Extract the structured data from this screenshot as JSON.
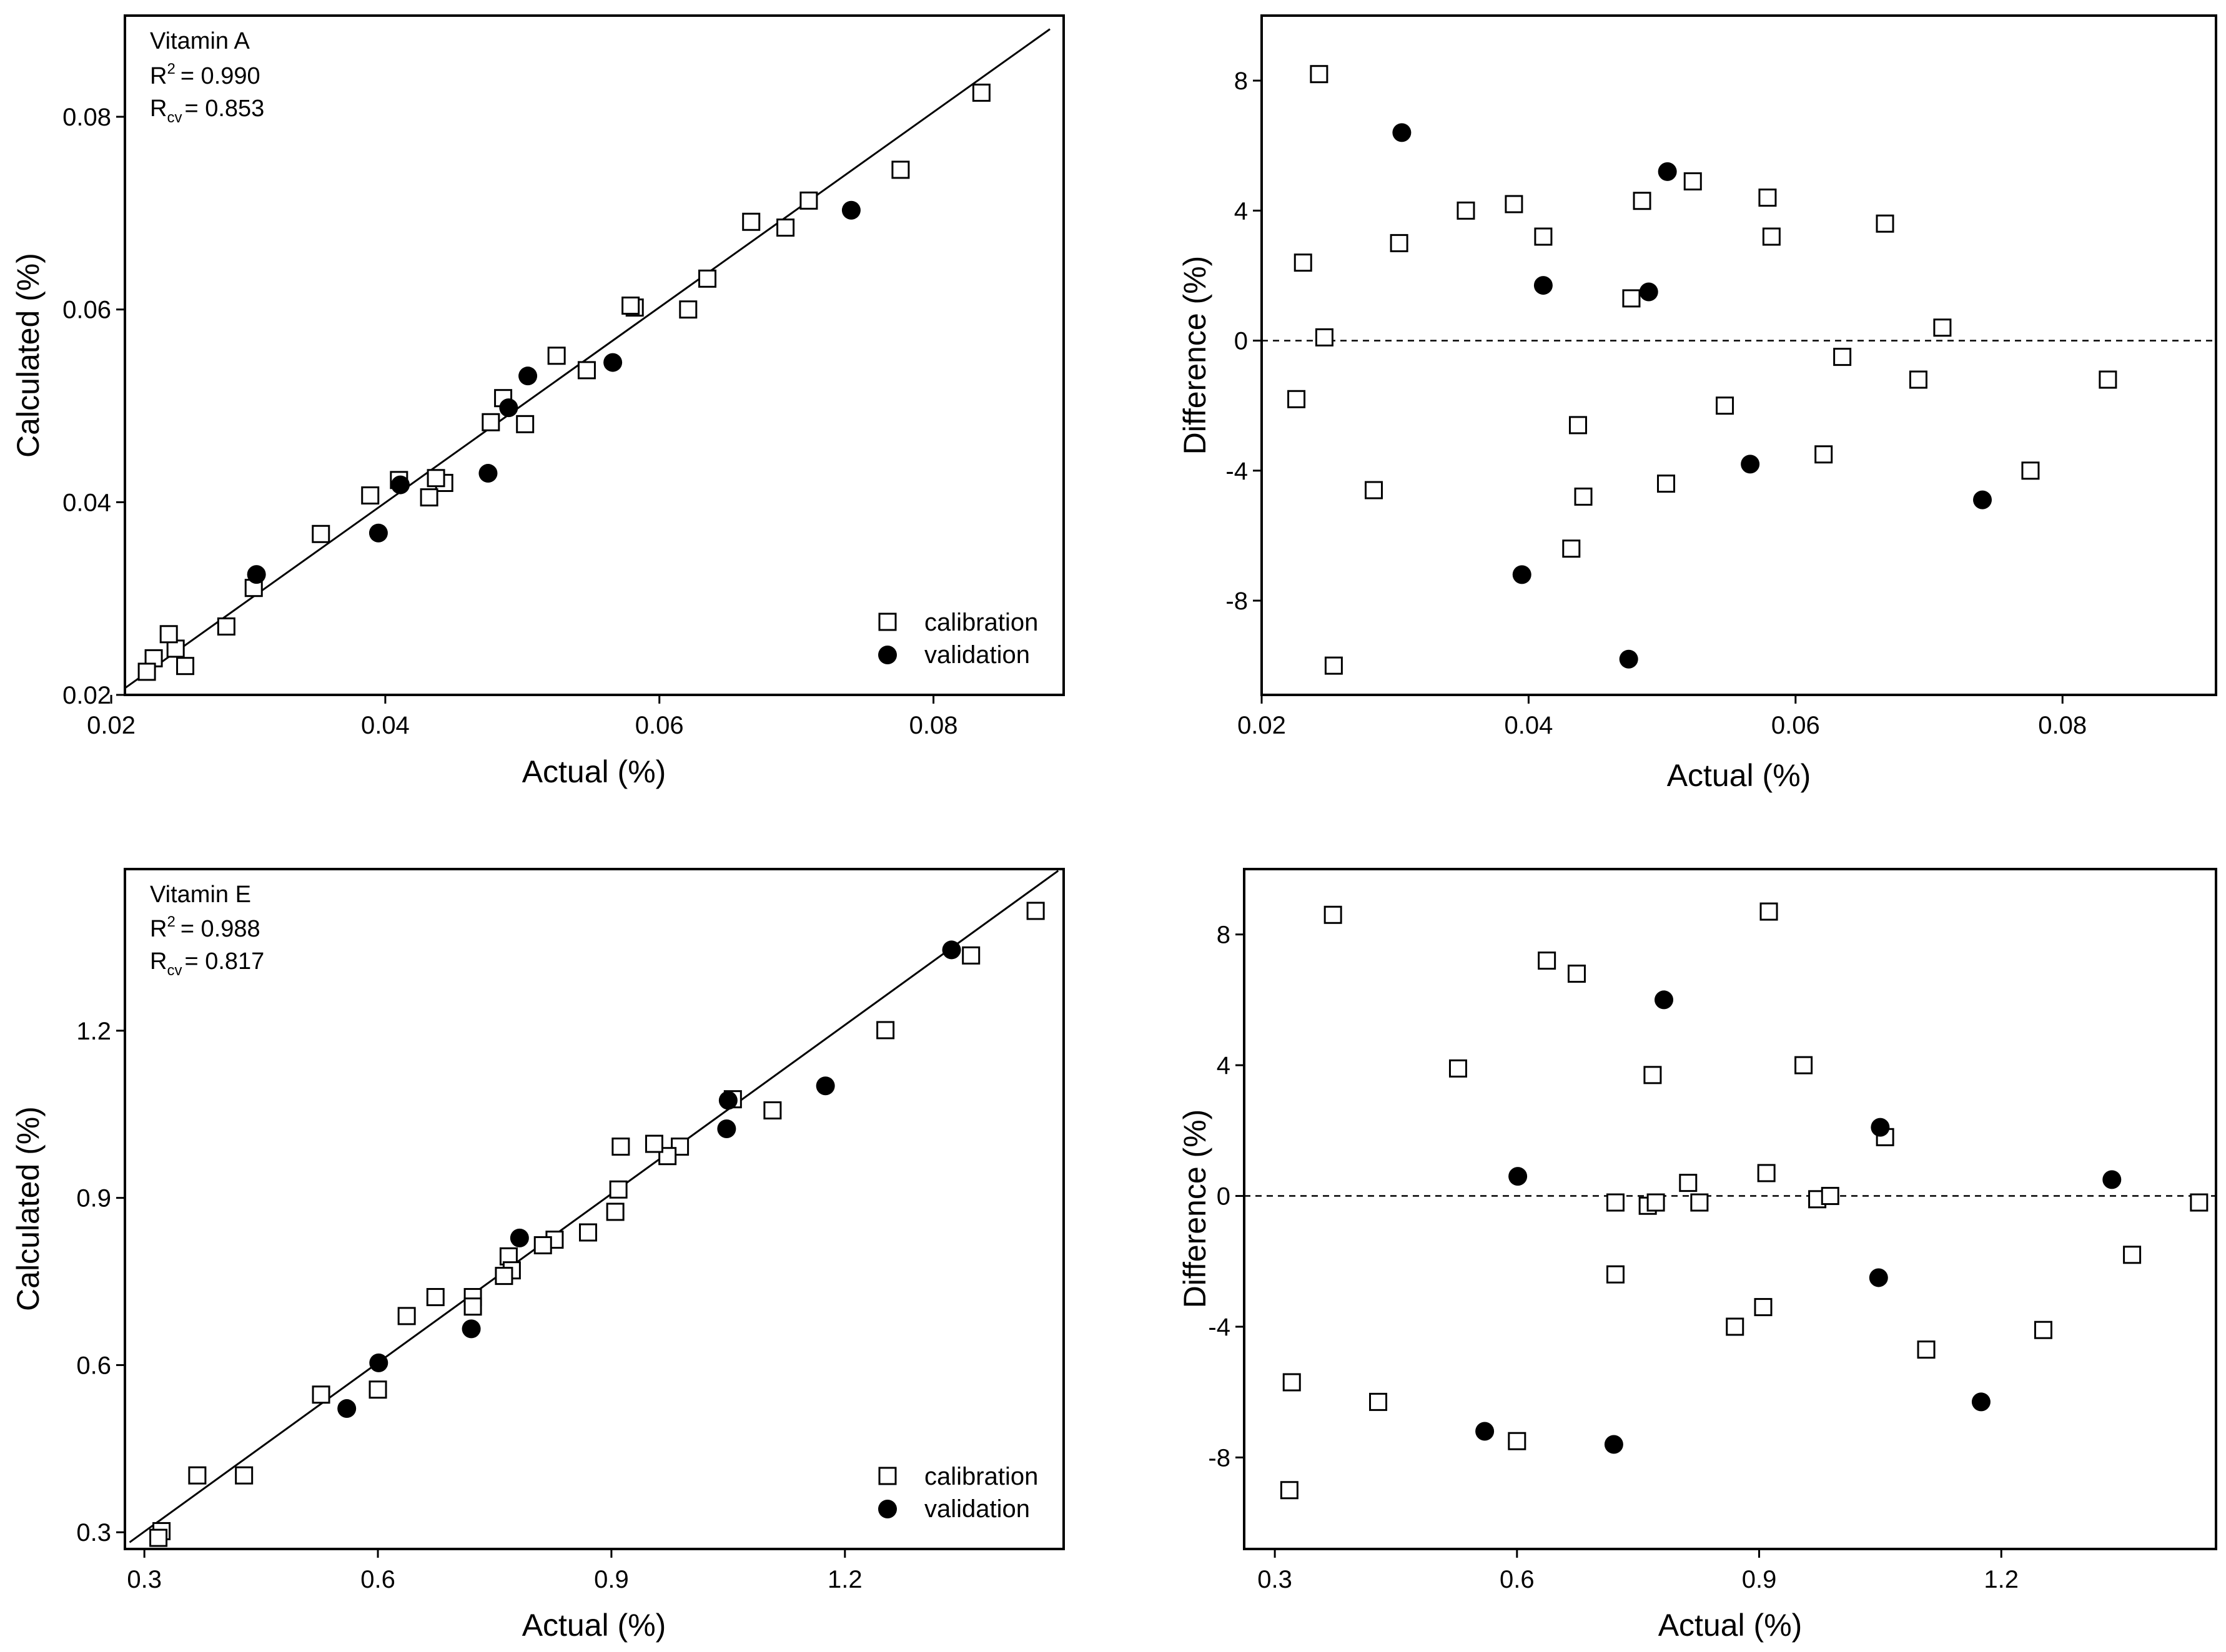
{
  "chart_data": [
    {
      "id": "vitA-calc",
      "type": "scatter",
      "title": "",
      "xlabel": "Actual (%)",
      "ylabel": "Calculated (%)",
      "xlim": [
        0.021,
        0.0895
      ],
      "ylim": [
        0.02,
        0.0905
      ],
      "xticks": [
        0.02,
        0.04,
        0.06,
        0.08
      ],
      "yticks": [
        0.02,
        0.04,
        0.06,
        0.08
      ],
      "xtick_labels": [
        "0.02",
        "0.04",
        "0.06",
        "0.08"
      ],
      "ytick_labels": [
        "0.02",
        "0.04",
        "0.06",
        "0.08"
      ],
      "annotation": {
        "name": "Vitamin A",
        "r2_label": "R",
        "r2_sup": "2",
        "r2_value": "= 0.990",
        "rcv_label": "R",
        "rcv_sub": "cv",
        "rcv_value": "= 0.853"
      },
      "legend": {
        "position": "bottom-right",
        "entries": [
          {
            "label": "calibration",
            "marker": "open-square"
          },
          {
            "label": "validation",
            "marker": "filled-circle"
          }
        ]
      },
      "line": {
        "x": [
          0.021,
          0.0885
        ],
        "y": [
          0.0207,
          0.0891
        ]
      },
      "series": [
        {
          "name": "calibration",
          "marker": "open-square",
          "points": [
            [
              0.0835,
              0.0825
            ],
            [
              0.0776,
              0.0745
            ],
            [
              0.0709,
              0.0713
            ],
            [
              0.0692,
              0.0685
            ],
            [
              0.0667,
              0.0691
            ],
            [
              0.0635,
              0.0632
            ],
            [
              0.0621,
              0.06
            ],
            [
              0.0582,
              0.0602
            ],
            [
              0.0579,
              0.0604
            ],
            [
              0.0547,
              0.0537
            ],
            [
              0.0525,
              0.0552
            ],
            [
              0.0502,
              0.0481
            ],
            [
              0.0486,
              0.0508
            ],
            [
              0.0477,
              0.0483
            ],
            [
              0.0443,
              0.042
            ],
            [
              0.0437,
              0.0425
            ],
            [
              0.0432,
              0.0405
            ],
            [
              0.041,
              0.0423
            ],
            [
              0.0389,
              0.0407
            ],
            [
              0.0353,
              0.0367
            ],
            [
              0.0304,
              0.0311
            ],
            [
              0.0284,
              0.0271
            ],
            [
              0.0254,
              0.023
            ],
            [
              0.0247,
              0.0248
            ],
            [
              0.0242,
              0.0263
            ],
            [
              0.0231,
              0.0238
            ],
            [
              0.0226,
              0.0224
            ]
          ]
        },
        {
          "name": "validation",
          "marker": "filled-circle",
          "points": [
            [
              0.074,
              0.0703
            ],
            [
              0.0566,
              0.0545
            ],
            [
              0.0504,
              0.0531
            ],
            [
              0.049,
              0.0498
            ],
            [
              0.0475,
              0.043
            ],
            [
              0.0411,
              0.0418
            ],
            [
              0.0395,
              0.0368
            ],
            [
              0.0306,
              0.0325
            ]
          ]
        }
      ]
    },
    {
      "id": "vitA-diff",
      "type": "scatter",
      "title": "",
      "xlabel": "Actual (%)",
      "ylabel": "Difference (%)",
      "xlim": [
        0.02,
        0.0915
      ],
      "ylim": [
        -10.9,
        10.0
      ],
      "xticks": [
        0.02,
        0.04,
        0.06,
        0.08
      ],
      "yticks": [
        -8,
        -4,
        0,
        4,
        8
      ],
      "xtick_labels": [
        "0.02",
        "0.04",
        "0.06",
        "0.08"
      ],
      "ytick_labels": [
        "-8",
        "-4",
        "0",
        "4",
        "8"
      ],
      "reference_line": {
        "y": 0,
        "style": "dashed"
      },
      "series": [
        {
          "name": "calibration",
          "marker": "open-square",
          "points": [
            [
              0.0243,
              8.2
            ],
            [
              0.0231,
              2.4
            ],
            [
              0.0226,
              -1.8
            ],
            [
              0.0247,
              0.1
            ],
            [
              0.0254,
              -10.0
            ],
            [
              0.0284,
              -4.6
            ],
            [
              0.0303,
              3.0
            ],
            [
              0.0353,
              4.0
            ],
            [
              0.0389,
              4.2
            ],
            [
              0.0411,
              3.2
            ],
            [
              0.0437,
              -2.6
            ],
            [
              0.0441,
              -4.8
            ],
            [
              0.0432,
              -6.4
            ],
            [
              0.0477,
              1.3
            ],
            [
              0.0485,
              4.3
            ],
            [
              0.0503,
              -4.4
            ],
            [
              0.0523,
              4.9
            ],
            [
              0.0547,
              -2.0
            ],
            [
              0.0579,
              4.4
            ],
            [
              0.0582,
              3.2
            ],
            [
              0.0621,
              -3.5
            ],
            [
              0.0635,
              -0.5
            ],
            [
              0.0667,
              3.6
            ],
            [
              0.0692,
              -1.2
            ],
            [
              0.071,
              0.4
            ],
            [
              0.0776,
              -4.0
            ],
            [
              0.0834,
              -1.2
            ]
          ]
        },
        {
          "name": "validation",
          "marker": "filled-circle",
          "points": [
            [
              0.0305,
              6.4
            ],
            [
              0.0411,
              1.7
            ],
            [
              0.0395,
              -7.2
            ],
            [
              0.0475,
              -9.8
            ],
            [
              0.049,
              1.5
            ],
            [
              0.0504,
              5.2
            ],
            [
              0.0566,
              -3.8
            ],
            [
              0.074,
              -4.9
            ]
          ]
        }
      ]
    },
    {
      "id": "vitE-calc",
      "type": "scatter",
      "title": "",
      "xlabel": "Actual (%)",
      "ylabel": "Calculated (%)",
      "xlim": [
        0.275,
        1.481
      ],
      "ylim": [
        0.27,
        1.49
      ],
      "xticks": [
        0.3,
        0.6,
        0.9,
        1.2
      ],
      "yticks": [
        0.3,
        0.6,
        0.9,
        1.2
      ],
      "xtick_labels": [
        "0.3",
        "0.6",
        "0.9",
        "1.2"
      ],
      "ytick_labels": [
        "0.3",
        "0.6",
        "0.9",
        "1.2"
      ],
      "annotation": {
        "name": "Vitamin E",
        "r2_label": "R",
        "r2_sup": "2",
        "r2_value": "= 0.988",
        "rcv_label": "R",
        "rcv_sub": "cv",
        "rcv_value": "= 0.817"
      },
      "legend": {
        "position": "bottom-right",
        "entries": [
          {
            "label": "calibration",
            "marker": "open-square"
          },
          {
            "label": "validation",
            "marker": "filled-circle"
          }
        ]
      },
      "line": {
        "x": [
          0.281,
          1.474
        ],
        "y": [
          0.282,
          1.487
        ]
      },
      "series": [
        {
          "name": "calibration",
          "marker": "open-square",
          "points": [
            [
              1.445,
              1.415
            ],
            [
              1.362,
              1.335
            ],
            [
              1.252,
              1.201
            ],
            [
              1.107,
              1.057
            ],
            [
              1.056,
              1.077
            ],
            [
              0.988,
              0.992
            ],
            [
              0.972,
              0.975
            ],
            [
              0.955,
              0.997
            ],
            [
              0.912,
              0.992
            ],
            [
              0.909,
              0.915
            ],
            [
              0.905,
              0.875
            ],
            [
              0.87,
              0.838
            ],
            [
              0.827,
              0.825
            ],
            [
              0.812,
              0.815
            ],
            [
              0.768,
              0.795
            ],
            [
              0.772,
              0.77
            ],
            [
              0.762,
              0.76
            ],
            [
              0.722,
              0.722
            ],
            [
              0.722,
              0.705
            ],
            [
              0.674,
              0.722
            ],
            [
              0.637,
              0.688
            ],
            [
              0.6,
              0.556
            ],
            [
              0.527,
              0.547
            ],
            [
              0.428,
              0.402
            ],
            [
              0.368,
              0.402
            ],
            [
              0.322,
              0.302
            ],
            [
              0.318,
              0.29
            ]
          ]
        },
        {
          "name": "validation",
          "marker": "filled-circle",
          "points": [
            [
              1.337,
              1.345
            ],
            [
              1.175,
              1.101
            ],
            [
              1.05,
              1.075
            ],
            [
              1.048,
              1.024
            ],
            [
              0.782,
              0.828
            ],
            [
              0.72,
              0.665
            ],
            [
              0.601,
              0.604
            ],
            [
              0.56,
              0.522
            ]
          ]
        }
      ]
    },
    {
      "id": "vitE-diff",
      "type": "scatter",
      "title": "",
      "xlabel": "Actual (%)",
      "ylabel": "Difference (%)",
      "xlim": [
        0.262,
        1.466
      ],
      "ylim": [
        -10.8,
        10.0
      ],
      "xticks": [
        0.3,
        0.6,
        0.9,
        1.2
      ],
      "yticks": [
        -8,
        -4,
        0,
        4,
        8
      ],
      "xtick_labels": [
        "0.3",
        "0.6",
        "0.9",
        "1.2"
      ],
      "ytick_labels": [
        "-8",
        "-4",
        "0",
        "4",
        "8"
      ],
      "reference_line": {
        "y": 0,
        "style": "dashed"
      },
      "series": [
        {
          "name": "calibration",
          "marker": "open-square",
          "points": [
            [
              0.372,
              8.6
            ],
            [
              0.321,
              -5.7
            ],
            [
              0.318,
              -9.0
            ],
            [
              0.428,
              -6.3
            ],
            [
              0.527,
              3.9
            ],
            [
              0.6,
              -7.5
            ],
            [
              0.637,
              7.2
            ],
            [
              0.674,
              6.8
            ],
            [
              0.722,
              -0.2
            ],
            [
              0.722,
              -2.4
            ],
            [
              0.762,
              -0.3
            ],
            [
              0.768,
              3.7
            ],
            [
              0.772,
              -0.2
            ],
            [
              0.812,
              0.4
            ],
            [
              0.826,
              -0.2
            ],
            [
              0.87,
              -4.0
            ],
            [
              0.905,
              -3.4
            ],
            [
              0.909,
              0.7
            ],
            [
              0.912,
              8.7
            ],
            [
              0.955,
              4.0
            ],
            [
              0.972,
              -0.1
            ],
            [
              0.988,
              0.0
            ],
            [
              1.056,
              1.8
            ],
            [
              1.107,
              -4.7
            ],
            [
              1.252,
              -4.1
            ],
            [
              1.362,
              -1.8
            ],
            [
              1.445,
              -0.2
            ]
          ]
        },
        {
          "name": "validation",
          "marker": "filled-circle",
          "points": [
            [
              0.601,
              0.6
            ],
            [
              0.56,
              -7.2
            ],
            [
              0.72,
              -7.6
            ],
            [
              0.782,
              6.0
            ],
            [
              1.048,
              -2.5
            ],
            [
              1.05,
              2.1
            ],
            [
              1.175,
              -6.3
            ],
            [
              1.337,
              0.5
            ]
          ]
        }
      ]
    }
  ]
}
